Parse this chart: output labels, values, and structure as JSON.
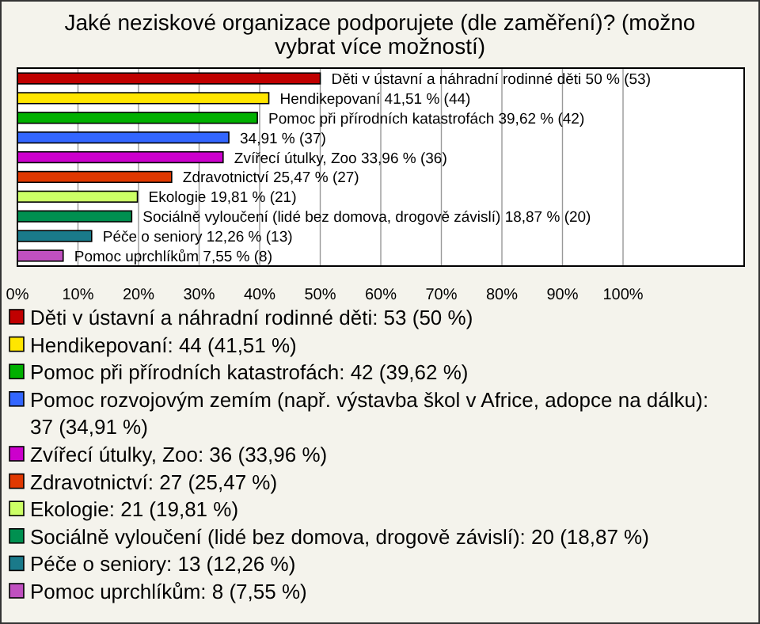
{
  "chart_data": {
    "type": "bar",
    "orientation": "horizontal",
    "title": "Jaké neziskové organizace podporujete (dle zaměření)? (možno vybrat více možností)",
    "categories": [
      null,
      null,
      null,
      null,
      null,
      null,
      null,
      null,
      null,
      null
    ],
    "series": [
      {
        "name": "Děti v ústavní a náhradní rodinné děti: 53 (50 %)",
        "color": "#c00000",
        "values": [
          50,
          null,
          null,
          null,
          null,
          null,
          null,
          null,
          null,
          null
        ],
        "value_labels": [
          "Děti v ústavní a náhradní rodinné děti 50 % (53)",
          null,
          null,
          null,
          null,
          null,
          null,
          null,
          null,
          null
        ]
      },
      {
        "name": "Hendikepovaní: 44 (41,51 %)",
        "color": "#ffe600",
        "values": [
          null,
          41.51,
          null,
          null,
          null,
          null,
          null,
          null,
          null,
          null
        ],
        "value_labels": [
          null,
          "Hendikepovaní 41,51 % (44)",
          null,
          null,
          null,
          null,
          null,
          null,
          null,
          null
        ]
      },
      {
        "name": "Pomoc při přírodních katastrofách: 42 (39,62 %)",
        "color": "#00b000",
        "values": [
          null,
          null,
          39.62,
          null,
          null,
          null,
          null,
          null,
          null,
          null
        ],
        "value_labels": [
          null,
          null,
          "Pomoc při přírodních katastrofách 39,62 % (42)",
          null,
          null,
          null,
          null,
          null,
          null,
          null
        ]
      },
      {
        "name": "Pomoc rozvojovým zemím (např. výstavba škol v Africe, adopce na dálku): 37 (34,91 %)",
        "color": "#3366ff",
        "values": [
          null,
          null,
          null,
          34.91,
          null,
          null,
          null,
          null,
          null,
          null
        ],
        "value_labels": [
          null,
          null,
          null,
          "34,91 % (37)",
          null,
          null,
          null,
          null,
          null,
          null
        ]
      },
      {
        "name": "Zvířecí útulky, Zoo: 36 (33,96 %)",
        "color": "#cc00cc",
        "values": [
          null,
          null,
          null,
          null,
          33.96,
          null,
          null,
          null,
          null,
          null
        ],
        "value_labels": [
          null,
          null,
          null,
          null,
          "Zvířecí útulky, Zoo 33,96 % (36)",
          null,
          null,
          null,
          null,
          null
        ]
      },
      {
        "name": "Zdravotnictví: 27 (25,47 %)",
        "color": "#e03800",
        "values": [
          null,
          null,
          null,
          null,
          null,
          25.47,
          null,
          null,
          null,
          null
        ],
        "value_labels": [
          null,
          null,
          null,
          null,
          null,
          "Zdravotnictví 25,47 % (27)",
          null,
          null,
          null,
          null
        ]
      },
      {
        "name": "Ekologie: 21 (19,81 %)",
        "color": "#ccff66",
        "values": [
          null,
          null,
          null,
          null,
          null,
          null,
          19.81,
          null,
          null,
          null
        ],
        "value_labels": [
          null,
          null,
          null,
          null,
          null,
          null,
          "Ekologie 19,81 % (21)",
          null,
          null,
          null
        ]
      },
      {
        "name": "Sociálně vyloučení (lidé bez domova, drogově závislí): 20 (18,87 %)",
        "color": "#009050",
        "values": [
          null,
          null,
          null,
          null,
          null,
          null,
          null,
          18.87,
          null,
          null
        ],
        "value_labels": [
          null,
          null,
          null,
          null,
          null,
          null,
          null,
          "Sociálně vyloučení (lidé bez domova, drogově závislí) 18,87 % (20)",
          null,
          null
        ]
      },
      {
        "name": "Péče o seniory: 13 (12,26 %)",
        "color": "#1a7a8a",
        "values": [
          null,
          null,
          null,
          null,
          null,
          null,
          null,
          null,
          12.26,
          null
        ],
        "value_labels": [
          null,
          null,
          null,
          null,
          null,
          null,
          null,
          null,
          "Péče o seniory 12,26 % (13)",
          null
        ]
      },
      {
        "name": "Pomoc uprchlíkům: 8 (7,55 %)",
        "color": "#c050c0",
        "values": [
          null,
          null,
          null,
          null,
          null,
          null,
          null,
          null,
          null,
          7.55
        ],
        "value_labels": [
          null,
          null,
          null,
          null,
          null,
          null,
          null,
          null,
          null,
          "Pomoc uprchlíkům 7,55 % (8)"
        ]
      }
    ],
    "xlim": [
      0,
      120
    ],
    "xticks": [
      {
        "value": 0,
        "label": "0%"
      },
      {
        "value": 10,
        "label": "10%"
      },
      {
        "value": 20,
        "label": "20%"
      },
      {
        "value": 30,
        "label": "30%"
      },
      {
        "value": 40,
        "label": "40%"
      },
      {
        "value": 50,
        "label": "50%"
      },
      {
        "value": 60,
        "label": "60%"
      },
      {
        "value": 70,
        "label": "70%"
      },
      {
        "value": 80,
        "label": "80%"
      },
      {
        "value": 90,
        "label": "90%"
      },
      {
        "value": 100,
        "label": "100%"
      }
    ],
    "grid": "x",
    "legend": "bottom",
    "tick_labels": "x"
  }
}
